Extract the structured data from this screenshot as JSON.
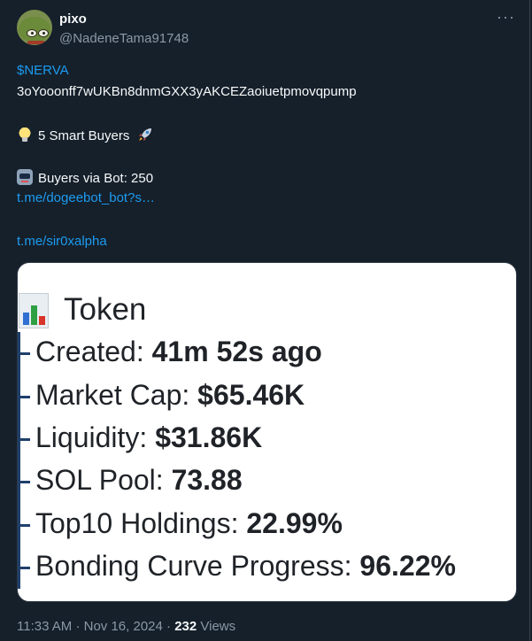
{
  "author": {
    "name": "pixo",
    "handle": "@NadeneTama91748"
  },
  "more_label": "···",
  "tweet": {
    "ticker": "$NERVA",
    "contract": "3oYooonff7wUKBn8dnmGXX3yAKCEZaoiuetpmovqpump",
    "smart_buyers": "5 Smart Buyers",
    "buyers_via_bot": "Buyers via Bot: 250",
    "link1": "t.me/dogeebot_bot?s…",
    "link2": "t.me/sir0xalpha"
  },
  "card": {
    "title": "Token",
    "rows": [
      {
        "label": "Created: ",
        "value": "41m 52s ago"
      },
      {
        "label": "Market Cap: ",
        "value": "$65.46K"
      },
      {
        "label": "Liquidity: ",
        "value": "$31.86K"
      },
      {
        "label": "SOL Pool: ",
        "value": "73.88"
      },
      {
        "label": "Top10 Holdings: ",
        "value": "22.99%"
      },
      {
        "label": "Bonding Curve Progress: ",
        "value": "96.22%"
      }
    ]
  },
  "meta": {
    "time": "11:33 AM",
    "date": "Nov 16, 2024",
    "views_count": "232",
    "views_label": "Views"
  },
  "colors": {
    "background": "#15202b",
    "link": "#1d9bf0",
    "muted": "#8b98a5"
  }
}
